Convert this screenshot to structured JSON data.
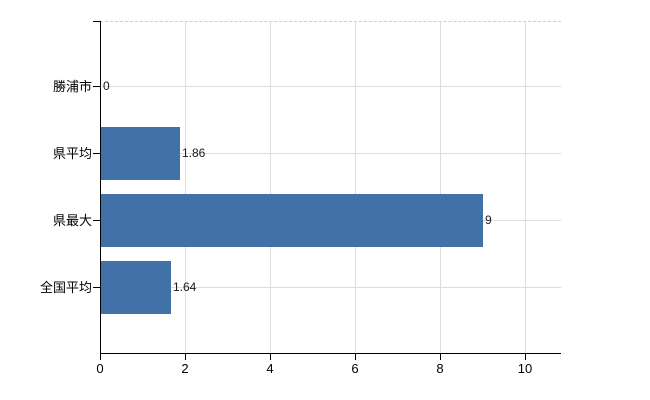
{
  "chart_data": {
    "type": "bar",
    "orientation": "horizontal",
    "title": "",
    "categories": [
      "勝浦市",
      "県平均",
      "県最大",
      "全国平均"
    ],
    "values": [
      0,
      1.86,
      9,
      1.64
    ],
    "value_labels": [
      "0",
      "1.86",
      "9",
      "1.64"
    ],
    "x_ticks": [
      "0",
      "2",
      "4",
      "6",
      "8",
      "10"
    ],
    "x_tick_values": [
      0,
      2,
      4,
      6,
      8,
      10
    ],
    "xlim": [
      0,
      10.85
    ],
    "ylabel": "",
    "xlabel": "",
    "grid": true,
    "legend": "none",
    "colors": {
      "bar": "#4271a8",
      "axis": "#000000",
      "gridline": "#dadfda",
      "plot_border": "#c9cfc9",
      "label": "#000000",
      "value_label": "#1a1a1a",
      "background": "#ffffff"
    }
  }
}
